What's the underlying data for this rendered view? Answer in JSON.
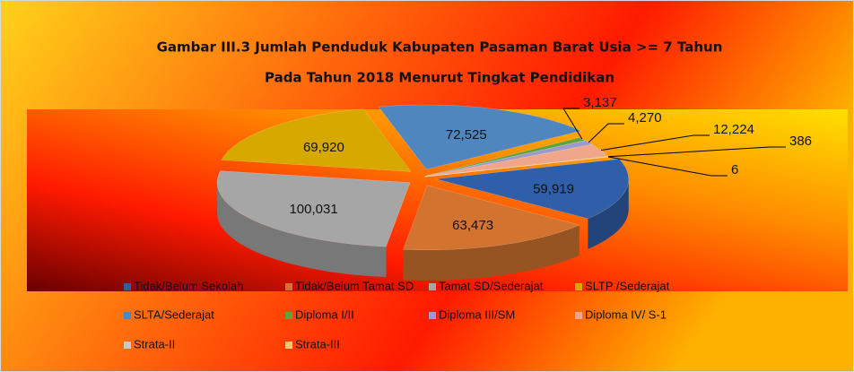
{
  "chart_data": {
    "type": "pie",
    "title": "Gambar III.3 Jumlah Penduduk  Kabupaten Pasaman Barat Usia >= 7 Tahun",
    "subtitle": "Pada Tahun 2018 Menurut Tingkat Pendidikan",
    "categories": [
      "Tidak/Belum Sekolah",
      "Tidak/Belum Tamat SD",
      "Tamat SD/Sederajat",
      "SLTP /Sederajat",
      "SLTA/Sederajat",
      "Diploma I/II",
      "Diploma III/SM",
      "Diploma IV/ S-1",
      "Strata-II",
      "Strata-III"
    ],
    "values": [
      59919,
      63473,
      100031,
      69920,
      72525,
      3137,
      4270,
      12224,
      386,
      6
    ],
    "value_labels": [
      "59,919",
      "63,473",
      "100,031",
      "69,920",
      "72,525",
      "3,137",
      "4,270",
      "12,224",
      "386",
      "6"
    ],
    "colors": [
      "#2f5fa8",
      "#d2732f",
      "#a6a6a6",
      "#d6a800",
      "#4f86c0",
      "#5fa33c",
      "#9a9ad0",
      "#f0a68a",
      "#c8c8c8",
      "#ffc37a"
    ],
    "legend": "bottom"
  }
}
